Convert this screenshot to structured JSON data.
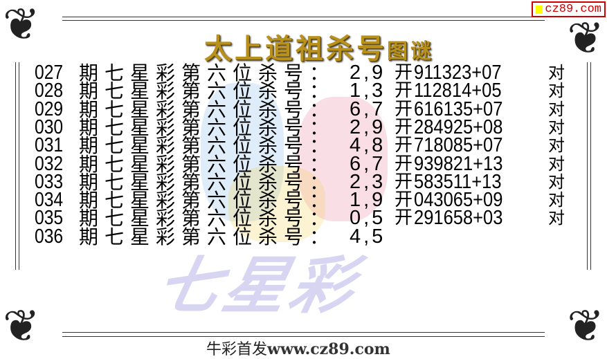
{
  "badge": {
    "text": "cz89.com",
    "accent": "#cc0000"
  },
  "title": {
    "main": "太上道祖杀号",
    "suffix": "图谜",
    "color": "#b8901c"
  },
  "watermark": "七星彩",
  "rows": [
    {
      "period": "027",
      "label": "期七星彩第六位杀号：",
      "kill": "2,9",
      "kai": "开",
      "result": "911323+07",
      "dui": "对"
    },
    {
      "period": "028",
      "label": "期七星彩第六位杀号：",
      "kill": "1,3",
      "kai": "开",
      "result": "112814+05",
      "dui": "对"
    },
    {
      "period": "029",
      "label": "期七星彩第六位杀号：",
      "kill": "6,7",
      "kai": "开",
      "result": "616135+07",
      "dui": "对"
    },
    {
      "period": "030",
      "label": "期七星彩第六位杀号：",
      "kill": "2,9",
      "kai": "开",
      "result": "284925+08",
      "dui": "对"
    },
    {
      "period": "031",
      "label": "期七星彩第六位杀号：",
      "kill": "4,8",
      "kai": "开",
      "result": "718085+07",
      "dui": "对"
    },
    {
      "period": "032",
      "label": "期七星彩第六位杀号：",
      "kill": "6,7",
      "kai": "开",
      "result": "939821+13",
      "dui": "对"
    },
    {
      "period": "033",
      "label": "期七星彩第六位杀号：",
      "kill": "2,3",
      "kai": "开",
      "result": "583511+13",
      "dui": "对"
    },
    {
      "period": "034",
      "label": "期七星彩第六位杀号：",
      "kill": "1,9",
      "kai": "开",
      "result": "043065+09",
      "dui": "对"
    },
    {
      "period": "035",
      "label": "期七星彩第六位杀号：",
      "kill": "0,5",
      "kai": "开",
      "result": "291658+03",
      "dui": "对"
    },
    {
      "period": "036",
      "label": "期七星彩第六位杀号：",
      "kill": "4,5",
      "kai": "",
      "result": "",
      "dui": ""
    }
  ],
  "footer": {
    "prefix": "牛彩首发",
    "url": "www.cz89.com"
  }
}
